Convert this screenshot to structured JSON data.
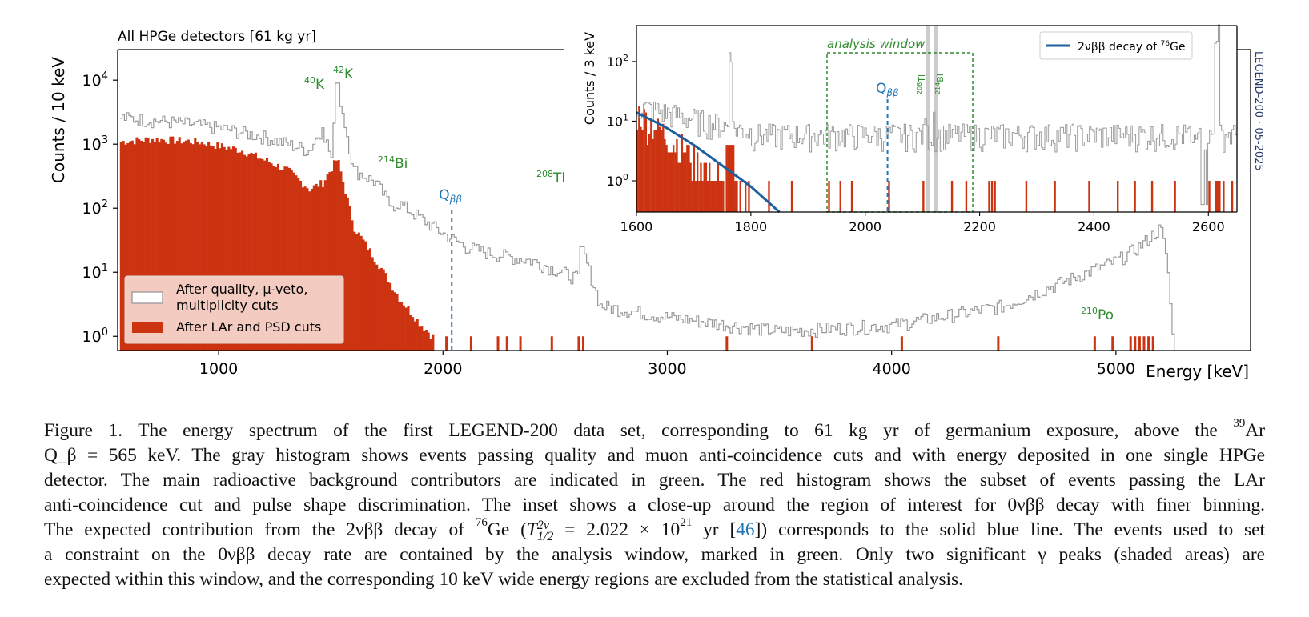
{
  "figure": {
    "title": "All HPGe detectors [61 kg yr]",
    "ylabel": "Counts / 10 keV",
    "xlabel": "Energy [keV]",
    "legend": [
      {
        "label_line1": "After quality, µ-veto,",
        "label_line2": "multiplicity cuts",
        "color": "#ffffff",
        "edge": "#999999"
      },
      {
        "label_line1": "After LAr and PSD cuts",
        "label_line2": "",
        "color": "#cc3311",
        "edge": "#cc3311"
      }
    ],
    "peak_labels": [
      {
        "mass": "40",
        "element": "K"
      },
      {
        "mass": "42",
        "element": "K"
      },
      {
        "mass": "214",
        "element": "Bi"
      },
      {
        "mass": "208",
        "element": "Tl"
      },
      {
        "mass": "210",
        "element": "Po"
      }
    ],
    "qbb_label": "Q",
    "qbb_sub": "ββ",
    "side_text": "LEGEND-200 · 05-2025",
    "inset": {
      "ylabel": "Counts / 3 keV",
      "analysis_window_label": "analysis window",
      "legend_label": "2νββ decay of ",
      "legend_iso_mass": "76",
      "legend_iso_element": "Ge",
      "tl_label_mass": "208",
      "tl_label_el": "Tl",
      "bi_label_mass": "214",
      "bi_label_el": "Bi"
    }
  },
  "chart_data": [
    {
      "type": "histogram",
      "title": "All HPGe detectors [61 kg yr]",
      "xlabel": "Energy [keV]",
      "ylabel": "Counts / 10 keV",
      "xlim": [
        550,
        5600
      ],
      "ylim": [
        0.6,
        30000
      ],
      "yscale": "log",
      "xticks": [
        1000,
        2000,
        3000,
        4000,
        5000
      ],
      "yticks": [
        "10^0",
        "10^1",
        "10^2",
        "10^3",
        "10^4"
      ],
      "legend_position": "lower-left",
      "series": [
        {
          "name": "After quality, µ-veto, multiplicity cuts",
          "style": "step",
          "color": "#999999",
          "approximate_points": [
            [
              560,
              2600
            ],
            [
              800,
              2200
            ],
            [
              1000,
              1800
            ],
            [
              1200,
              1300
            ],
            [
              1400,
              800
            ],
            [
              1460,
              1800
            ],
            [
              1500,
              600
            ],
            [
              1525,
              9000
            ],
            [
              1600,
              400
            ],
            [
              1700,
              250
            ],
            [
              1764,
              110
            ],
            [
              1800,
              120
            ],
            [
              2000,
              40
            ],
            [
              2100,
              25
            ],
            [
              2200,
              20
            ],
            [
              2400,
              15
            ],
            [
              2600,
              8
            ],
            [
              2615,
              25
            ],
            [
              2700,
              3
            ],
            [
              3000,
              2
            ],
            [
              3500,
              1.2
            ],
            [
              4000,
              1.5
            ],
            [
              4500,
              3
            ],
            [
              4800,
              8
            ],
            [
              5000,
              15
            ],
            [
              5100,
              25
            ],
            [
              5200,
              50
            ],
            [
              5230,
              10
            ],
            [
              5250,
              1
            ]
          ],
          "peaks": [
            {
              "label": "40K",
              "energy": 1461,
              "counts": 1800
            },
            {
              "label": "42K",
              "energy": 1525,
              "counts": 9000
            },
            {
              "label": "214Bi",
              "energy": 1764,
              "counts": 110
            },
            {
              "label": "208Tl",
              "energy": 2615,
              "counts": 25
            },
            {
              "label": "210Po",
              "energy": 5200,
              "counts": 50
            }
          ]
        },
        {
          "name": "After LAr and PSD cuts",
          "style": "filled",
          "color": "#cc3311",
          "approximate_points": [
            [
              560,
              1100
            ],
            [
              700,
              1200
            ],
            [
              900,
              1100
            ],
            [
              1100,
              800
            ],
            [
              1300,
              400
            ],
            [
              1400,
              200
            ],
            [
              1460,
              250
            ],
            [
              1525,
              600
            ],
            [
              1600,
              50
            ],
            [
              1700,
              15
            ],
            [
              1800,
              4
            ],
            [
              1900,
              1.5
            ],
            [
              1950,
              1
            ]
          ]
        }
      ],
      "annotations": [
        {
          "label": "Qββ",
          "energy": 2039,
          "style": "dashed",
          "color": "#1f77b4"
        }
      ]
    },
    {
      "type": "histogram",
      "title": "",
      "ylabel": "Counts / 3 keV",
      "xlim": [
        1600,
        2650
      ],
      "ylim": [
        0.3,
        400
      ],
      "yscale": "log",
      "xticks": [
        1600,
        1800,
        2000,
        2200,
        2400,
        2600
      ],
      "yticks": [
        "10^0",
        "10^1",
        "10^2"
      ],
      "legend_position": "top-right",
      "series": [
        {
          "name": "2νββ decay of 76Ge",
          "style": "line",
          "color": "#1f5f9f",
          "points": [
            [
              1600,
              14
            ],
            [
              1650,
              8
            ],
            [
              1700,
              4
            ],
            [
              1750,
              1.8
            ],
            [
              1800,
              0.8
            ],
            [
              1850,
              0.3
            ]
          ]
        }
      ],
      "annotations": [
        {
          "label": "analysis window",
          "x_range": [
            1930,
            2190
          ],
          "color": "#2e8b2e"
        },
        {
          "label": "Qββ",
          "energy": 2039
        },
        {
          "label": "208Tl",
          "energy": 2104,
          "shaded": true
        },
        {
          "label": "214Bi",
          "energy": 2119,
          "shaded": true
        }
      ]
    }
  ],
  "caption": {
    "l1_a": "Figure 1.  The energy spectrum of the first LEGEND-200 data set, corresponding to 61 kg yr of germanium exposure, above the ",
    "l1_sup": "39",
    "l1_b": "Ar",
    "l2": "Q_β = 565 keV. The gray histogram shows events passing quality and muon anti-coincidence cuts and with energy deposited in one single HPGe",
    "l3": "detector. The main radioactive background contributors are indicated in green. The red histogram shows the subset of events passing the LAr",
    "l4": "anti-coincidence cut and pulse shape discrimination. The inset shows a close-up around the region of interest for 0νββ decay with finer binning.",
    "l5_a": "The expected contribution from the 2νββ decay of ",
    "l5_sup": "76",
    "l5_b": "Ge (",
    "l5_T": "T",
    "l5_Tsup": "2ν",
    "l5_Tsub": "1/2",
    "l5_c": " = 2.022 × 10",
    "l5_exp": "21",
    "l5_d": " yr [",
    "l5_ref": "46",
    "l5_e": "]) corresponds to the solid blue line. The events used to set",
    "l6": "a constraint on the 0νββ decay rate are contained by the analysis window, marked in green. Only two significant γ peaks (shaded areas) are",
    "l7": "expected within this window, and the corresponding 10 keV wide energy regions are excluded from the statistical analysis."
  }
}
